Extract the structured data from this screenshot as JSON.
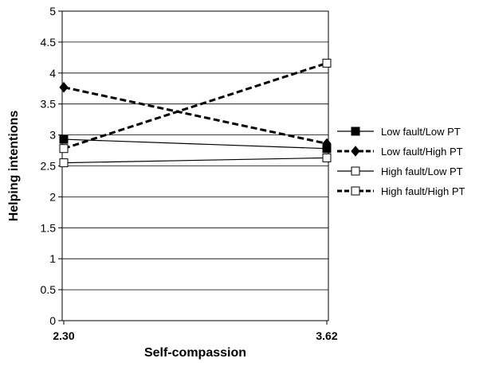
{
  "chart_data": {
    "type": "line",
    "title": "",
    "xlabel": "Self-compassion",
    "ylabel": "Helping intentions",
    "categories": [
      "2.30",
      "3.62"
    ],
    "ylim": [
      0,
      5
    ],
    "yticks": [
      "0",
      "0.5",
      "1",
      "1.5",
      "2",
      "2.5",
      "3",
      "3.5",
      "4",
      "4.5",
      "5"
    ],
    "grid": true,
    "legend_position": "right",
    "series": [
      {
        "name": "Low fault/Low PT",
        "values": [
          2.93,
          2.78
        ],
        "line_style": "solid",
        "marker": "filled-square",
        "color": "#000000"
      },
      {
        "name": "Low fault/High PT",
        "values": [
          3.77,
          2.86
        ],
        "line_style": "dashed",
        "marker": "filled-diamond",
        "color": "#000000"
      },
      {
        "name": "High fault/Low PT",
        "values": [
          2.55,
          2.63
        ],
        "line_style": "solid",
        "marker": "open-square",
        "color": "#000000"
      },
      {
        "name": "High fault/High PT",
        "values": [
          2.78,
          4.16
        ],
        "line_style": "dashed",
        "marker": "open-square",
        "color": "#000000"
      }
    ]
  }
}
